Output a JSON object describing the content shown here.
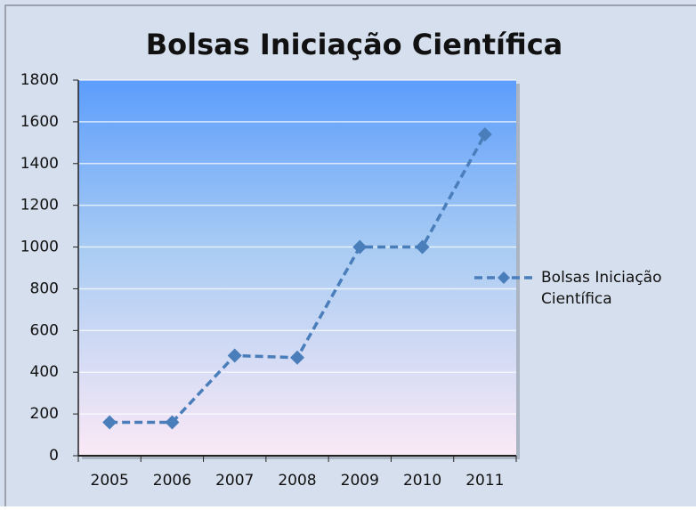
{
  "chart_data": {
    "type": "line",
    "title": "Bolsas Iniciação Científica",
    "categories": [
      "2005",
      "2006",
      "2007",
      "2008",
      "2009",
      "2010",
      "2011"
    ],
    "series": [
      {
        "name": "Bolsas Iniciação Científica",
        "color": "#4a7ebb",
        "values": [
          160,
          160,
          480,
          470,
          1000,
          1000,
          1540
        ]
      }
    ],
    "ylim": [
      0,
      1800
    ],
    "yticks": [
      0,
      200,
      400,
      600,
      800,
      1000,
      1200,
      1400,
      1600,
      1800
    ],
    "grid": true,
    "legend": "right"
  }
}
